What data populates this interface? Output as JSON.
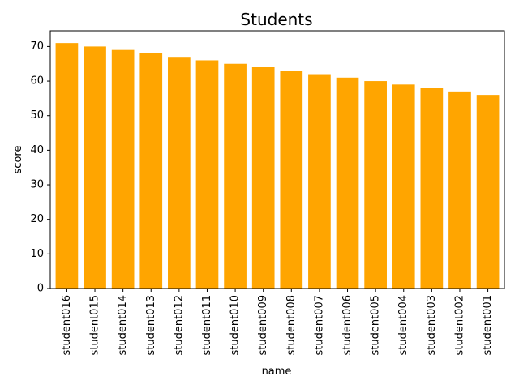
{
  "chart_data": {
    "type": "bar",
    "title": "Students",
    "xlabel": "name",
    "ylabel": "score",
    "categories": [
      "student016",
      "student015",
      "student014",
      "student013",
      "student012",
      "student011",
      "student010",
      "student009",
      "student008",
      "student007",
      "student006",
      "student005",
      "student004",
      "student003",
      "student002",
      "student001"
    ],
    "values": [
      71,
      70,
      69,
      68,
      67,
      66,
      65,
      64,
      63,
      62,
      61,
      60,
      59,
      58,
      57,
      56
    ],
    "ylim": [
      0,
      74.55
    ],
    "yticks": [
      0,
      10,
      20,
      30,
      40,
      50,
      60,
      70
    ],
    "bar_color": "#ffa500",
    "grid": false,
    "legend": "none"
  }
}
